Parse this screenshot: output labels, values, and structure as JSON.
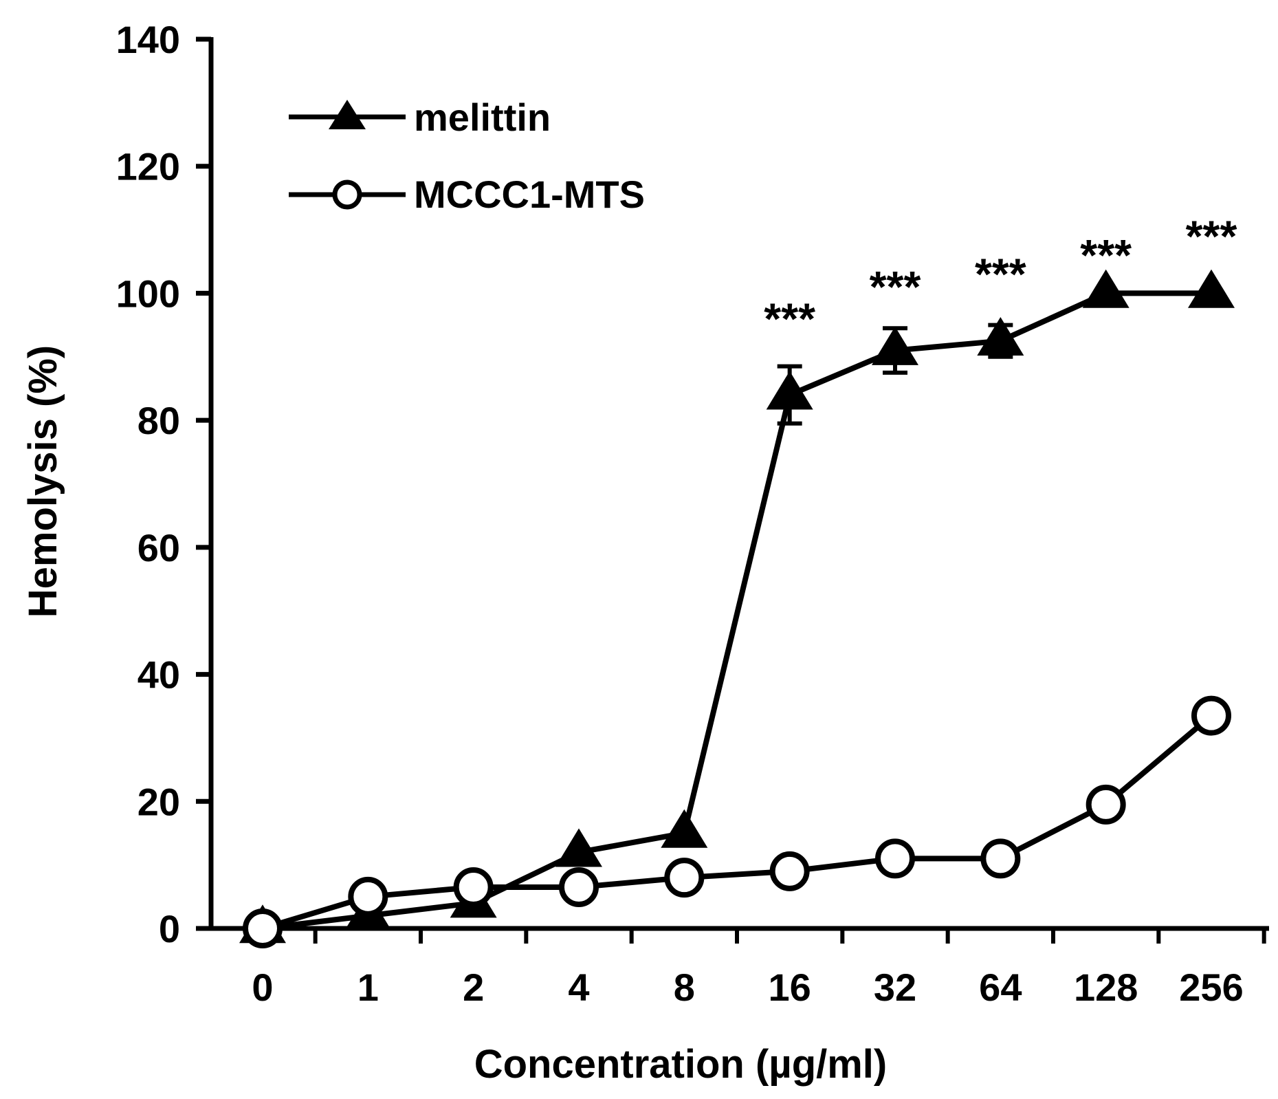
{
  "chart_data": {
    "type": "line",
    "title": "",
    "xlabel": "Concentration (µg/ml)",
    "ylabel": "Hemolysis (%)",
    "categories": [
      "0",
      "1",
      "2",
      "4",
      "8",
      "16",
      "32",
      "64",
      "128",
      "256"
    ],
    "ylim": [
      0,
      140
    ],
    "yticks": [
      "0",
      "20",
      "40",
      "60",
      "80",
      "100",
      "120",
      "140"
    ],
    "grid": false,
    "legend_position": "top-left",
    "series": [
      {
        "name": "melittin",
        "marker": "filled-triangle",
        "color": "#000000",
        "values": [
          0,
          2,
          4,
          12,
          15,
          84,
          91,
          92.5,
          100,
          100
        ],
        "errors": [
          0,
          0,
          0,
          0,
          0,
          4.5,
          3.5,
          2.5,
          0,
          0
        ]
      },
      {
        "name": "MCCC1-MTS",
        "marker": "open-circle",
        "color": "#000000",
        "values": [
          0,
          5,
          6.5,
          6.5,
          8,
          9,
          11,
          11,
          19.5,
          33.5
        ],
        "errors": [
          0,
          0,
          0,
          0,
          0,
          0,
          0,
          0,
          0,
          0
        ]
      }
    ],
    "annotations": [
      {
        "category": "16",
        "text": "***",
        "y": 96
      },
      {
        "category": "32",
        "text": "***",
        "y": 101
      },
      {
        "category": "64",
        "text": "***",
        "y": 103
      },
      {
        "category": "128",
        "text": "***",
        "y": 106
      },
      {
        "category": "256",
        "text": "***",
        "y": 109
      }
    ]
  }
}
